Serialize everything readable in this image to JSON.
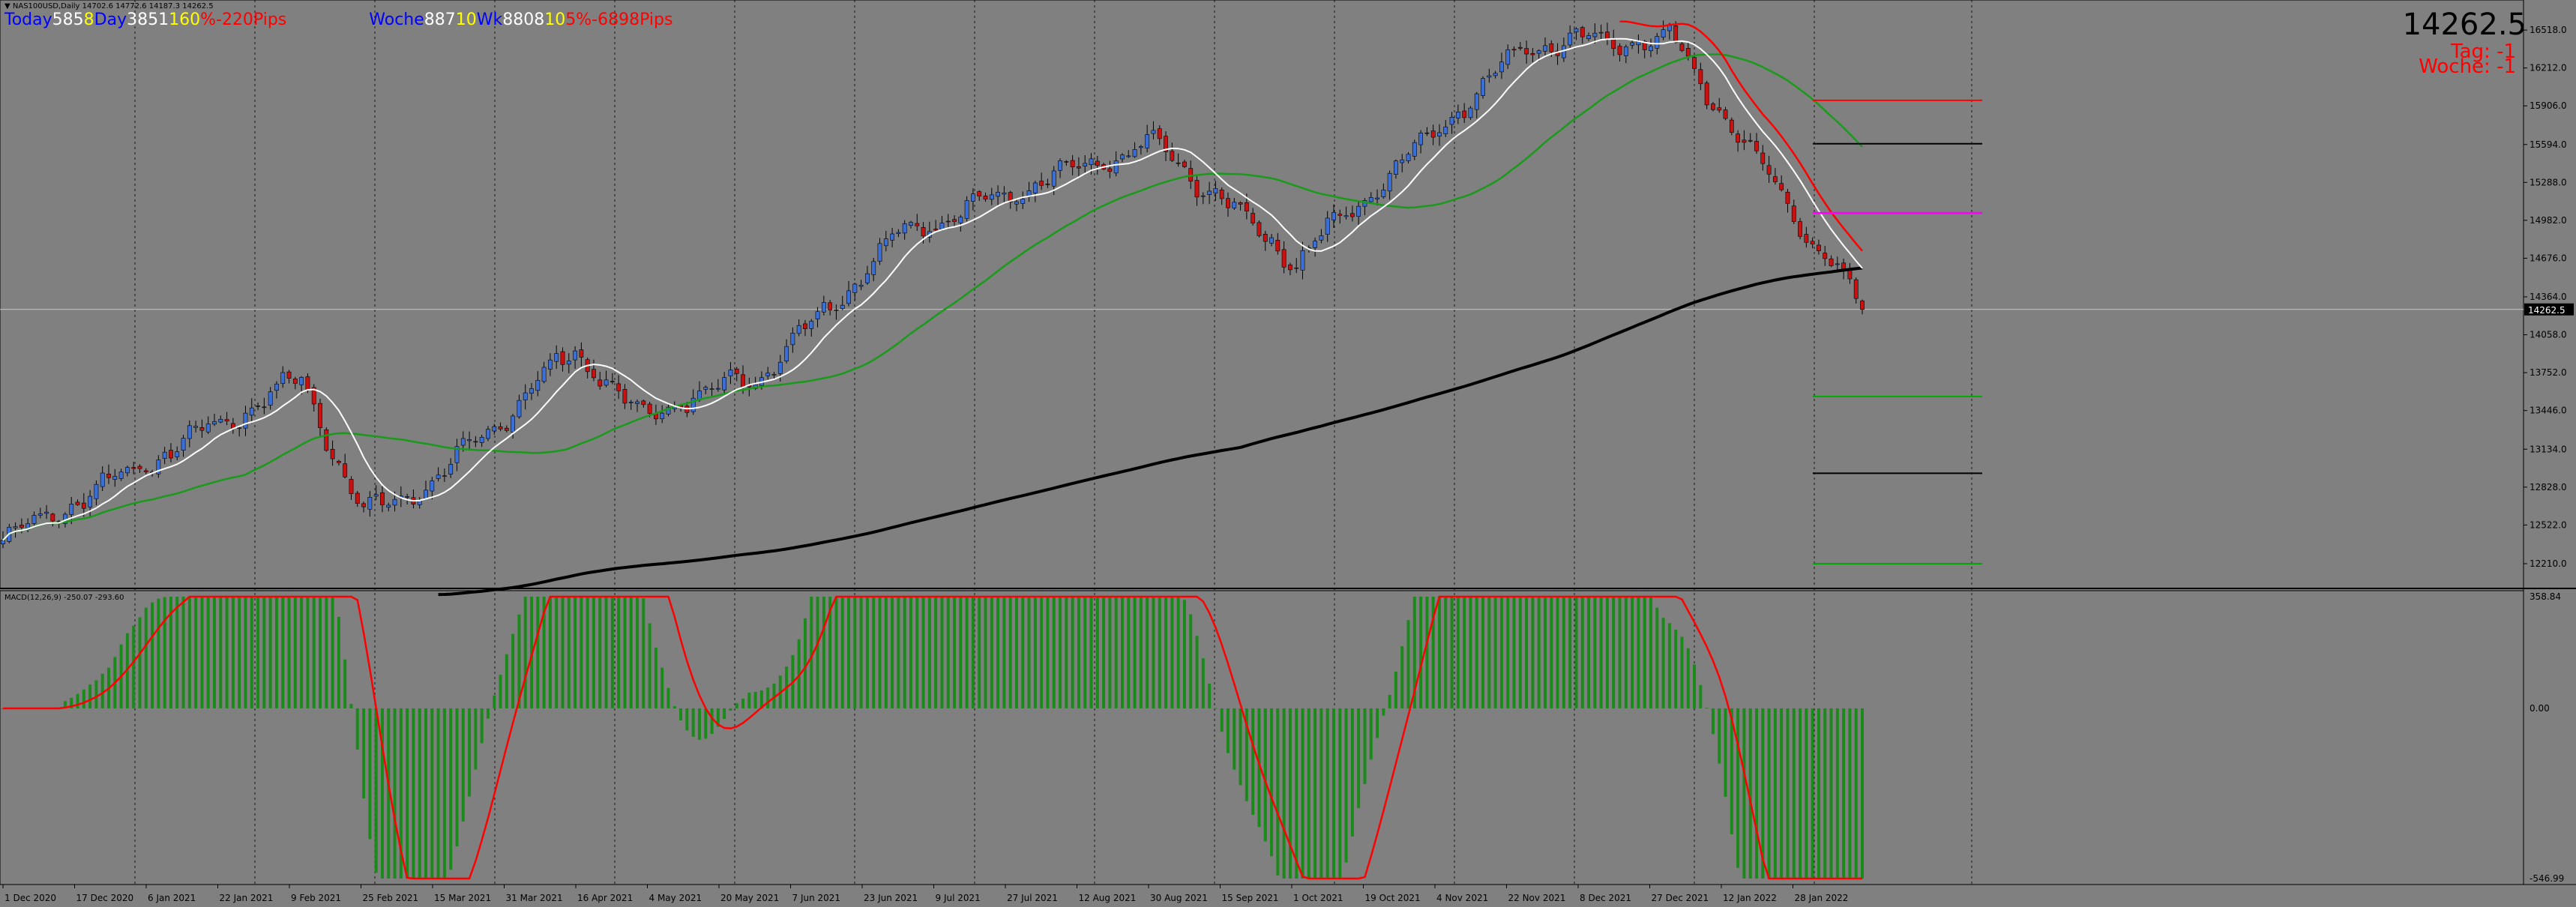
{
  "symbol_header": "▼ NAS100USD,Daily  14702.6 14772.6 14187.3 14262.5",
  "info_line": [
    {
      "text": "Today",
      "color": "#0000ff"
    },
    {
      "text": "585",
      "color": "#ffffff"
    },
    {
      "text": "8",
      "color": "#ffff00"
    },
    {
      "text": "Day",
      "color": "#0000ff"
    },
    {
      "text": "3851",
      "color": "#ffffff"
    },
    {
      "text": "160",
      "color": "#ffff00"
    },
    {
      "text": "%",
      "color": "#ff0000"
    },
    {
      "text": "-220",
      "color": "#ff0000"
    },
    {
      "text": "Pips",
      "color": "#ff0000"
    },
    {
      "text": "Woche",
      "color": "#0000ff"
    },
    {
      "text": "887",
      "color": "#ffffff"
    },
    {
      "text": "10",
      "color": "#ffff00"
    },
    {
      "text": "Wk",
      "color": "#0000ff"
    },
    {
      "text": "8808",
      "color": "#ffffff"
    },
    {
      "text": "10",
      "color": "#ffff00"
    },
    {
      "text": "5%",
      "color": "#ff0000"
    },
    {
      "text": "-6898",
      "color": "#ff0000"
    },
    {
      "text": "Pips",
      "color": "#ff0000"
    }
  ],
  "last_price": "14262.5",
  "tag_label": "Tag: -1",
  "woche_label": "Woche: -1",
  "current_price_box": "14262.5",
  "macd_label": "MACD(12,26,9) -250.07 -293.60",
  "price_ticks": [
    "16518.0",
    "16212.0",
    "15906.0",
    "15594.0",
    "15288.0",
    "14982.0",
    "14676.0",
    "14364.0",
    "14058.0",
    "13752.0",
    "13446.0",
    "13134.0",
    "12828.0",
    "12522.0",
    "12210.0"
  ],
  "macd_ticks": [
    "358.84",
    "0.00",
    "-546.99"
  ],
  "date_ticks": [
    "1 Dec 2020",
    "17 Dec 2020",
    "6 Jan 2021",
    "22 Jan 2021",
    "9 Feb 2021",
    "25 Feb 2021",
    "15 Mar 2021",
    "31 Mar 2021",
    "16 Apr 2021",
    "4 May 2021",
    "20 May 2021",
    "7 Jun 2021",
    "23 Jun 2021",
    "9 Jul 2021",
    "27 Jul 2021",
    "12 Aug 2021",
    "30 Aug 2021",
    "15 Sep 2021",
    "1 Oct 2021",
    "19 Oct 2021",
    "4 Nov 2021",
    "22 Nov 2021",
    "8 Dec 2021",
    "27 Dec 2021",
    "12 Jan 2022",
    "28 Jan 2022"
  ],
  "colors": {
    "background": "#808080",
    "bull": "#3b6fd8",
    "bear": "#cc1010",
    "ma_fast": "#ffffff",
    "ma_mid": "#1a9a1a",
    "ma_slow": "#000000",
    "ma_red": "#ff0000",
    "macd_hist": "#1a8a1a",
    "macd_signal": "#ff0000",
    "level_red": "#ff0000",
    "level_black": "#000000",
    "level_magenta": "#ff00ff",
    "level_green": "#00aa00"
  },
  "chart_data": {
    "type": "candlestick",
    "ohlc_anchors": [
      {
        "date": "1 Dec 2020",
        "close": 12400
      },
      {
        "date": "22 Jan 2021",
        "close": 13350
      },
      {
        "date": "9 Feb 2021",
        "close": 13700
      },
      {
        "date": "25 Feb 2021",
        "close": 12600
      },
      {
        "date": "15 Mar 2021",
        "close": 12900
      },
      {
        "date": "16 Apr 2021",
        "close": 13950
      },
      {
        "date": "4 May 2021",
        "close": 13400
      },
      {
        "date": "7 Jun 2021",
        "close": 13750
      },
      {
        "date": "9 Jul 2021",
        "close": 14900
      },
      {
        "date": "30 Aug 2021",
        "close": 15600
      },
      {
        "date": "1 Oct 2021",
        "close": 14650
      },
      {
        "date": "22 Nov 2021",
        "close": 16400
      },
      {
        "date": "27 Dec 2021",
        "close": 16450
      },
      {
        "date": "28 Jan 2022",
        "close": 14262.5
      }
    ],
    "last_close": 14262.5,
    "horizontal_levels": [
      15950,
      15600,
      15040,
      13560,
      12940,
      12210
    ],
    "y_range": [
      12010,
      16700
    ],
    "macd_range": [
      -546.99,
      358.84
    ]
  }
}
